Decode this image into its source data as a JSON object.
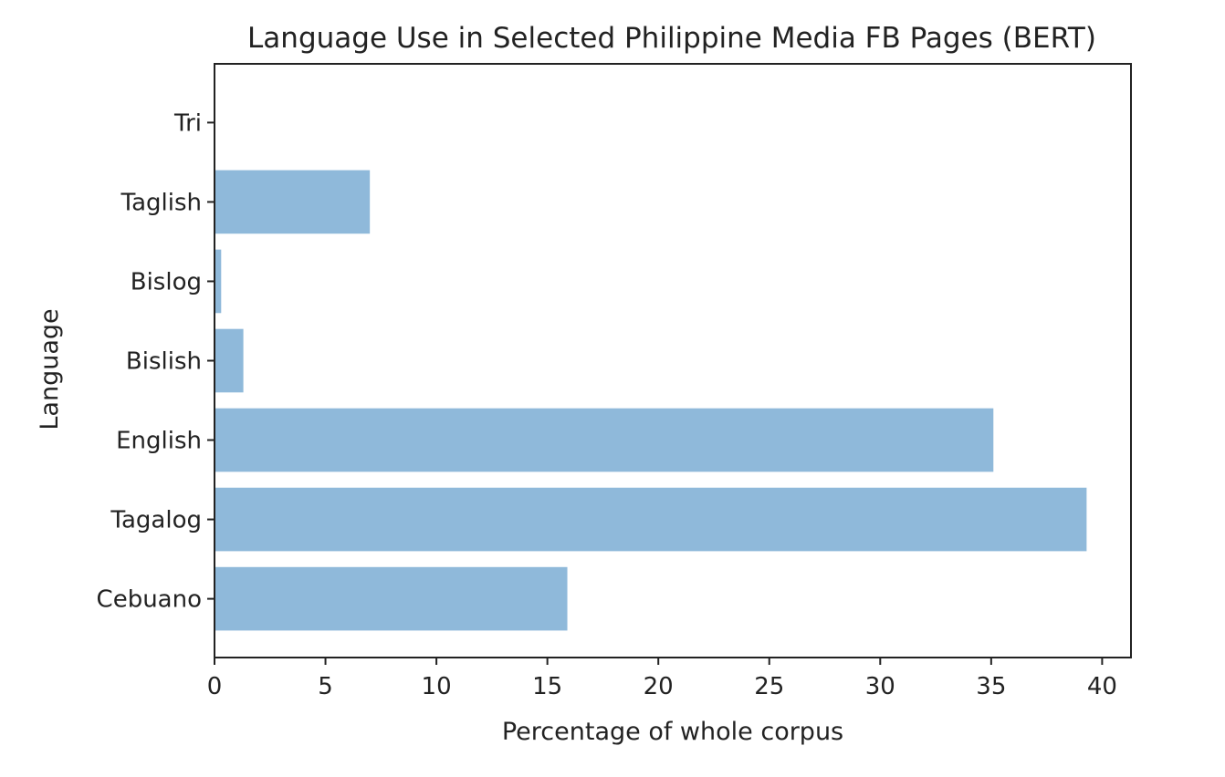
{
  "chart_data": {
    "type": "bar",
    "orientation": "horizontal",
    "title": "Language Use in Selected Philippine Media FB Pages (BERT)",
    "xlabel": "Percentage of whole corpus",
    "ylabel": "Language",
    "categories": [
      "Cebuano",
      "Tagalog",
      "English",
      "Bislish",
      "Bislog",
      "Taglish",
      "Tri"
    ],
    "values": [
      15.9,
      39.3,
      35.1,
      1.3,
      0.3,
      7.0,
      0.0
    ],
    "xlim": [
      0,
      41.3
    ],
    "xticks": [
      0,
      5,
      10,
      15,
      20,
      25,
      30,
      35,
      40
    ],
    "bar_color": "#8fb9da",
    "grid": false,
    "legend": "none"
  }
}
